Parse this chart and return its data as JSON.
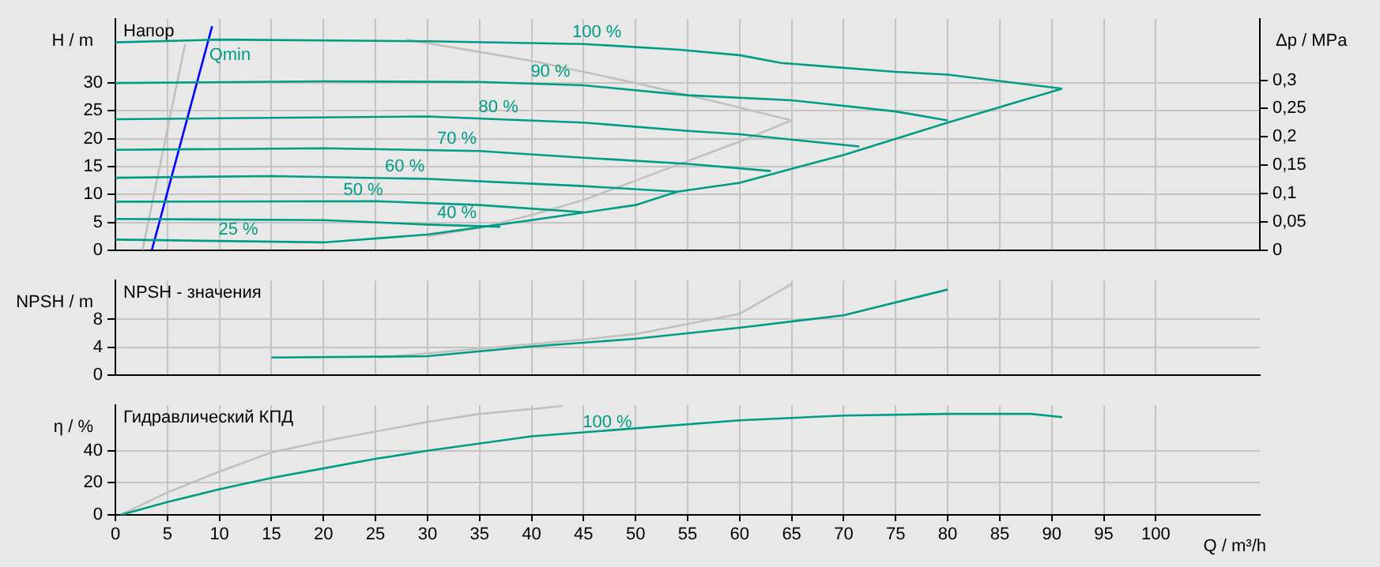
{
  "chart_data": [
    {
      "type": "line",
      "title": "Напор",
      "ylabel": "H / m",
      "y2label": "Δp / MPa",
      "xlim": [
        0,
        110
      ],
      "xticks": [
        0,
        5,
        10,
        15,
        20,
        25,
        30,
        35,
        40,
        45,
        50,
        55,
        60,
        65,
        70,
        75,
        80,
        85,
        90,
        95,
        100
      ],
      "ylim": [
        0,
        41.5
      ],
      "yticks": [
        0,
        5,
        10,
        15,
        20,
        25,
        30
      ],
      "y2lim": [
        0,
        0.408
      ],
      "y2ticks": [
        0,
        {
          "value": 0.05,
          "label": "0,05"
        },
        {
          "value": 0.1,
          "label": "0,1"
        },
        {
          "value": 0.15,
          "label": "0,15"
        },
        {
          "value": 0.2,
          "label": "0,2"
        },
        {
          "value": 0.25,
          "label": "0,25"
        },
        {
          "value": 0.3,
          "label": "0,3"
        }
      ],
      "grid": true,
      "tick_labels": "y",
      "marker": "none",
      "line_style": "solid",
      "series": [
        {
          "color": "#009c86",
          "x": [
            0,
            10,
            30,
            45,
            54,
            60,
            64,
            75,
            80,
            91
          ],
          "values": [
            37.3,
            37.8,
            37.5,
            37,
            36,
            35,
            33.6,
            32,
            31.5,
            29
          ]
        },
        {
          "color": "#009c86",
          "x": [
            0,
            20,
            35,
            45,
            55,
            65,
            75,
            80
          ],
          "values": [
            30,
            30.3,
            30.2,
            29.6,
            27.8,
            26.9,
            24.9,
            23.3
          ]
        },
        {
          "color": "#009c86",
          "x": [
            0,
            30,
            45,
            55,
            60,
            71.5
          ],
          "values": [
            23.5,
            24,
            22.9,
            21.4,
            20.8,
            18.6
          ]
        },
        {
          "color": "#009c86",
          "x": [
            0,
            20,
            35,
            45,
            55,
            60,
            63
          ],
          "values": [
            18,
            18.3,
            17.8,
            16.6,
            15.5,
            14.7,
            14.2
          ]
        },
        {
          "color": "#009c86",
          "x": [
            0,
            15,
            30,
            45,
            54
          ],
          "values": [
            13,
            13.3,
            12.8,
            11.5,
            10.5
          ]
        },
        {
          "color": "#009c86",
          "x": [
            0,
            25,
            35,
            45
          ],
          "values": [
            8.7,
            8.8,
            8.1,
            6.8
          ]
        },
        {
          "color": "#009c86",
          "x": [
            0,
            20,
            30,
            37
          ],
          "values": [
            5.6,
            5.4,
            4.6,
            4.2
          ]
        },
        {
          "color": "#009c86",
          "x": [
            0,
            20,
            30,
            40,
            50,
            54,
            60,
            70,
            80,
            91
          ],
          "values": [
            1.9,
            1.4,
            2.8,
            5.4,
            8.1,
            10.5,
            12.1,
            17.1,
            22.9,
            29
          ]
        },
        {
          "color": "#c0c0c0",
          "x": [
            2.6,
            6.7
          ],
          "values": [
            0,
            37
          ]
        },
        {
          "color": "#c0c0c0",
          "x": [
            28,
            40,
            50,
            58,
            65,
            60,
            55,
            50,
            45,
            40,
            35,
            30
          ],
          "values": [
            37.8,
            34,
            30,
            26.5,
            23.3,
            19.5,
            16,
            12.5,
            9,
            6.3,
            4,
            2.5
          ]
        },
        {
          "color": "#0000ff",
          "x": [
            3.5,
            9.3
          ],
          "values": [
            0,
            40.2
          ]
        }
      ],
      "annotations": [
        {
          "text": "100 %",
          "x": 43,
          "y": 37.1
        },
        {
          "text": "90 %",
          "x": 39,
          "y": 30
        },
        {
          "text": "80 %",
          "x": 34,
          "y": 23.7
        },
        {
          "text": "70 %",
          "x": 30,
          "y": 18
        },
        {
          "text": "60 %",
          "x": 25,
          "y": 13
        },
        {
          "text": "50 %",
          "x": 21,
          "y": 8.8
        },
        {
          "text": "40 %",
          "x": 30,
          "y": 4.6
        },
        {
          "text": "25 %",
          "x": 9,
          "y": 1.7
        },
        {
          "text": "Qmin",
          "x": 8.1,
          "y": 33
        }
      ]
    },
    {
      "type": "line",
      "title": "NPSH - значения",
      "ylabel": "NPSH / m",
      "xlim": [
        0,
        110
      ],
      "xticks": [
        0,
        5,
        10,
        15,
        20,
        25,
        30,
        35,
        40,
        45,
        50,
        55,
        60,
        65,
        70,
        75,
        80,
        85,
        90,
        95,
        100
      ],
      "ylim": [
        0,
        13.6
      ],
      "yticks": [
        0,
        4,
        8
      ],
      "grid": true,
      "tick_labels": "y",
      "marker": "none",
      "line_style": "solid",
      "series": [
        {
          "color": "#009c86",
          "x": [
            15,
            30,
            40,
            50,
            60,
            70,
            80
          ],
          "values": [
            2.5,
            2.7,
            4.1,
            5.2,
            6.8,
            8.6,
            12.3
          ]
        },
        {
          "color": "#c0c0c0",
          "x": [
            25.3,
            45,
            50,
            60,
            65
          ],
          "values": [
            2.5,
            5.1,
            5.9,
            8.8,
            13.1
          ]
        }
      ]
    },
    {
      "type": "line",
      "title": "Гидравлический КПД",
      "ylabel": "η / %",
      "xlabel": "Q / m³/h",
      "xlim": [
        0,
        110
      ],
      "xticks": [
        0,
        5,
        10,
        15,
        20,
        25,
        30,
        35,
        40,
        45,
        50,
        55,
        60,
        65,
        70,
        75,
        80,
        85,
        90,
        95,
        100
      ],
      "ylim": [
        0,
        68.4
      ],
      "yticks": [
        0,
        20,
        40
      ],
      "grid": true,
      "marker": "none",
      "line_style": "solid",
      "series": [
        {
          "color": "#009c86",
          "x": [
            0.5,
            5,
            10,
            15,
            20,
            25,
            30,
            40,
            50,
            60,
            70,
            80,
            88,
            91
          ],
          "values": [
            0,
            8,
            16,
            23,
            29,
            35,
            40,
            49,
            54,
            59,
            62,
            63,
            63,
            61
          ]
        },
        {
          "color": "#c0c0c0",
          "x": [
            0.5,
            5,
            10,
            15,
            20,
            25,
            30,
            35,
            40,
            43
          ],
          "values": [
            0,
            14,
            27,
            39,
            46,
            52,
            58,
            63,
            66,
            68
          ]
        }
      ],
      "annotations": [
        {
          "text": "100 %",
          "x": 44,
          "y": 51
        }
      ]
    }
  ]
}
